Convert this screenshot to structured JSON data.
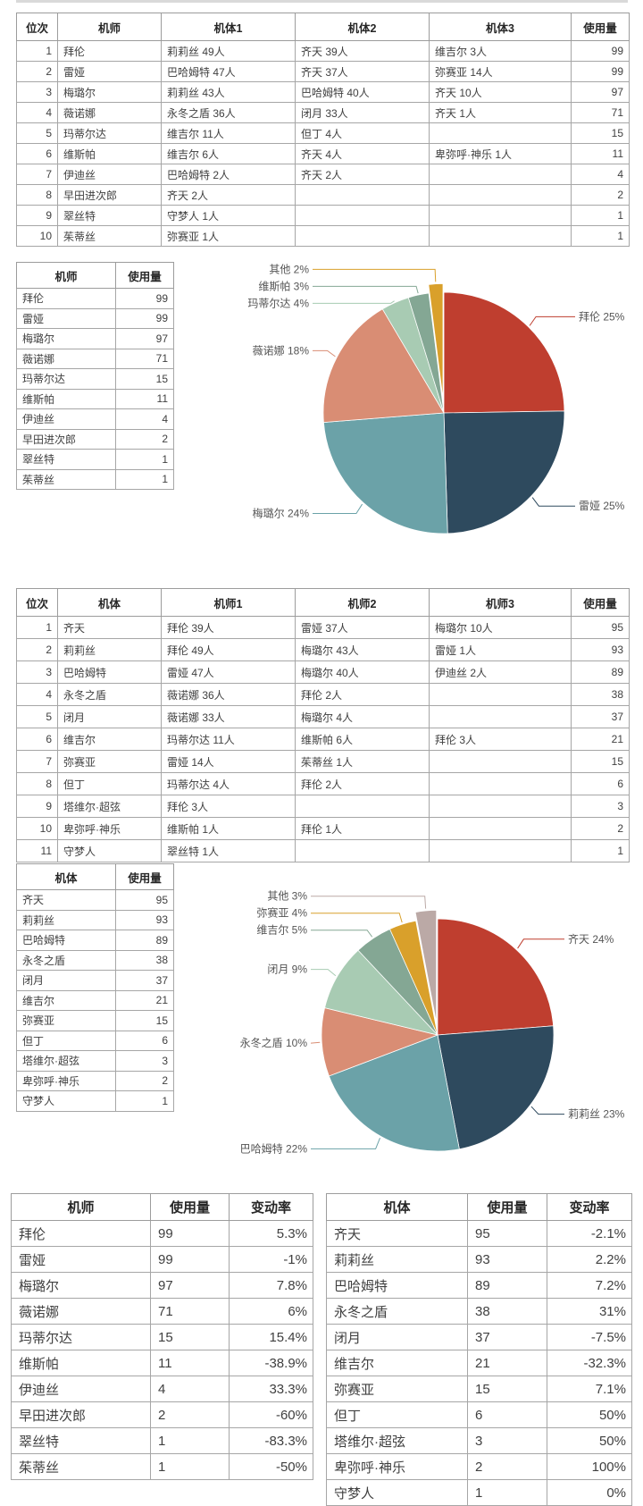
{
  "tables": {
    "pilot_ranking": {
      "headers": [
        "位次",
        "机师",
        "机体1",
        "机体2",
        "机体3",
        "使用量"
      ],
      "rows": [
        [
          "1",
          "拜伦",
          "莉莉丝 49人",
          "齐天 39人",
          "维吉尔 3人",
          "99"
        ],
        [
          "2",
          "雷娅",
          "巴哈姆特 47人",
          "齐天 37人",
          "弥赛亚 14人",
          "99"
        ],
        [
          "3",
          "梅璐尔",
          "莉莉丝 43人",
          "巴哈姆特 40人",
          "齐天 10人",
          "97"
        ],
        [
          "4",
          "薇诺娜",
          "永冬之盾 36人",
          "闭月 33人",
          "齐天 1人",
          "71"
        ],
        [
          "5",
          "玛蒂尔达",
          "维吉尔 11人",
          "但丁 4人",
          "",
          "15"
        ],
        [
          "6",
          "维斯帕",
          "维吉尔 6人",
          "齐天 4人",
          "卑弥呼·神乐 1人",
          "11"
        ],
        [
          "7",
          "伊迪丝",
          "巴哈姆特 2人",
          "齐天 2人",
          "",
          "4"
        ],
        [
          "8",
          "早田进次郎",
          "齐天 2人",
          "",
          "",
          "2"
        ],
        [
          "9",
          "翠丝特",
          "守梦人 1人",
          "",
          "",
          "1"
        ],
        [
          "10",
          "茱蒂丝",
          "弥赛亚 1人",
          "",
          "",
          "1"
        ]
      ]
    },
    "pilot_summary": {
      "headers": [
        "机师",
        "使用量"
      ],
      "rows": [
        [
          "拜伦",
          "99"
        ],
        [
          "雷娅",
          "99"
        ],
        [
          "梅璐尔",
          "97"
        ],
        [
          "薇诺娜",
          "71"
        ],
        [
          "玛蒂尔达",
          "15"
        ],
        [
          "维斯帕",
          "11"
        ],
        [
          "伊迪丝",
          "4"
        ],
        [
          "早田进次郎",
          "2"
        ],
        [
          "翠丝特",
          "1"
        ],
        [
          "茱蒂丝",
          "1"
        ]
      ]
    },
    "mech_ranking": {
      "headers": [
        "位次",
        "机体",
        "机师1",
        "机师2",
        "机师3",
        "使用量"
      ],
      "rows": [
        [
          "1",
          "齐天",
          "拜伦 39人",
          "雷娅 37人",
          "梅璐尔 10人",
          "95"
        ],
        [
          "2",
          "莉莉丝",
          "拜伦 49人",
          "梅璐尔 43人",
          "雷娅 1人",
          "93"
        ],
        [
          "3",
          "巴哈姆特",
          "雷娅 47人",
          "梅璐尔 40人",
          "伊迪丝 2人",
          "89"
        ],
        [
          "4",
          "永冬之盾",
          "薇诺娜 36人",
          "拜伦 2人",
          "",
          "38"
        ],
        [
          "5",
          "闭月",
          "薇诺娜 33人",
          "梅璐尔 4人",
          "",
          "37"
        ],
        [
          "6",
          "维吉尔",
          "玛蒂尔达 11人",
          "维斯帕 6人",
          "拜伦 3人",
          "21"
        ],
        [
          "7",
          "弥赛亚",
          "雷娅 14人",
          "茱蒂丝 1人",
          "",
          "15"
        ],
        [
          "8",
          "但丁",
          "玛蒂尔达 4人",
          "拜伦 2人",
          "",
          "6"
        ],
        [
          "9",
          "塔维尔·超弦",
          "拜伦 3人",
          "",
          "",
          "3"
        ],
        [
          "10",
          "卑弥呼·神乐",
          "维斯帕 1人",
          "拜伦 1人",
          "",
          "2"
        ],
        [
          "11",
          "守梦人",
          "翠丝特 1人",
          "",
          "",
          "1"
        ]
      ]
    },
    "mech_summary": {
      "headers": [
        "机体",
        "使用量"
      ],
      "rows": [
        [
          "齐天",
          "95"
        ],
        [
          "莉莉丝",
          "93"
        ],
        [
          "巴哈姆特",
          "89"
        ],
        [
          "永冬之盾",
          "38"
        ],
        [
          "闭月",
          "37"
        ],
        [
          "维吉尔",
          "21"
        ],
        [
          "弥赛亚",
          "15"
        ],
        [
          "但丁",
          "6"
        ],
        [
          "塔维尔·超弦",
          "3"
        ],
        [
          "卑弥呼·神乐",
          "2"
        ],
        [
          "守梦人",
          "1"
        ]
      ]
    },
    "pilot_change": {
      "headers": [
        "机师",
        "使用量",
        "变动率"
      ],
      "rows": [
        [
          "拜伦",
          "99",
          "5.3%"
        ],
        [
          "雷娅",
          "99",
          "-1%"
        ],
        [
          "梅璐尔",
          "97",
          "7.8%"
        ],
        [
          "薇诺娜",
          "71",
          "6%"
        ],
        [
          "玛蒂尔达",
          "15",
          "15.4%"
        ],
        [
          "维斯帕",
          "11",
          "-38.9%"
        ],
        [
          "伊迪丝",
          "4",
          "33.3%"
        ],
        [
          "早田进次郎",
          "2",
          "-60%"
        ],
        [
          "翠丝特",
          "1",
          "-83.3%"
        ],
        [
          "茱蒂丝",
          "1",
          "-50%"
        ]
      ]
    },
    "mech_change": {
      "headers": [
        "机体",
        "使用量",
        "变动率"
      ],
      "rows": [
        [
          "齐天",
          "95",
          "-2.1%"
        ],
        [
          "莉莉丝",
          "93",
          "2.2%"
        ],
        [
          "巴哈姆特",
          "89",
          "7.2%"
        ],
        [
          "永冬之盾",
          "38",
          "31%"
        ],
        [
          "闭月",
          "37",
          "-7.5%"
        ],
        [
          "维吉尔",
          "21",
          "-32.3%"
        ],
        [
          "弥赛亚",
          "15",
          "7.1%"
        ],
        [
          "但丁",
          "6",
          "50%"
        ],
        [
          "塔维尔·超弦",
          "3",
          "50%"
        ],
        [
          "卑弥呼·神乐",
          "2",
          "100%"
        ],
        [
          "守梦人",
          "1",
          "0%"
        ]
      ]
    }
  },
  "chart_data": [
    {
      "type": "pie",
      "name": "pilot-usage-share",
      "legend": "none",
      "label_style": "callout-with-percent",
      "slices": [
        {
          "label": "拜伦",
          "value": 99,
          "pct": "25%",
          "color": "#bf3e2f"
        },
        {
          "label": "雷娅",
          "value": 99,
          "pct": "25%",
          "color": "#2e4a5e"
        },
        {
          "label": "梅璐尔",
          "value": 97,
          "pct": "24%",
          "color": "#6ba2a8"
        },
        {
          "label": "薇诺娜",
          "value": 71,
          "pct": "18%",
          "color": "#d98d74"
        },
        {
          "label": "玛蒂尔达",
          "value": 15,
          "pct": "4%",
          "color": "#a8cbb3"
        },
        {
          "label": "维斯帕",
          "value": 11,
          "pct": "3%",
          "color": "#84a794"
        },
        {
          "label": "其他",
          "value": 8,
          "pct": "2%",
          "color": "#d9a02b",
          "exploded": true
        }
      ]
    },
    {
      "type": "pie",
      "name": "mech-usage-share",
      "legend": "none",
      "label_style": "callout-with-percent",
      "slices": [
        {
          "label": "齐天",
          "value": 95,
          "pct": "24%",
          "color": "#bf3e2f"
        },
        {
          "label": "莉莉丝",
          "value": 93,
          "pct": "23%",
          "color": "#2e4a5e"
        },
        {
          "label": "巴哈姆特",
          "value": 89,
          "pct": "22%",
          "color": "#6ba2a8"
        },
        {
          "label": "永冬之盾",
          "value": 38,
          "pct": "10%",
          "color": "#d98d74"
        },
        {
          "label": "闭月",
          "value": 37,
          "pct": "9%",
          "color": "#a8cbb3"
        },
        {
          "label": "维吉尔",
          "value": 21,
          "pct": "5%",
          "color": "#84a794"
        },
        {
          "label": "弥赛亚",
          "value": 15,
          "pct": "4%",
          "color": "#d9a02b"
        },
        {
          "label": "其他",
          "value": 12,
          "pct": "3%",
          "color": "#bba9a6",
          "exploded": true
        }
      ]
    }
  ]
}
